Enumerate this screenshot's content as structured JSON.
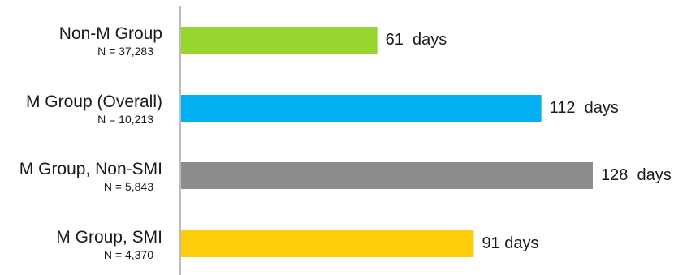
{
  "chart_data": {
    "type": "bar",
    "orientation": "horizontal",
    "categories": [
      "Non-M Group",
      "M Group (Overall)",
      "M Group, Non-SMI",
      "M Group, SMI"
    ],
    "sample_sizes": [
      "N = 37,283",
      "N = 10,213",
      "N = 5,843",
      "N = 4,370"
    ],
    "values": [
      61,
      112,
      128,
      91
    ],
    "value_labels": [
      "61  days",
      "112  days",
      "128  days",
      "91 days"
    ],
    "colors": [
      "#97d42e",
      "#00b0f0",
      "#8c8c8c",
      "#fecd0a"
    ],
    "axis_color": "#a6a6a6",
    "xlim": [
      0,
      128
    ],
    "grid": false,
    "legend": "none"
  }
}
